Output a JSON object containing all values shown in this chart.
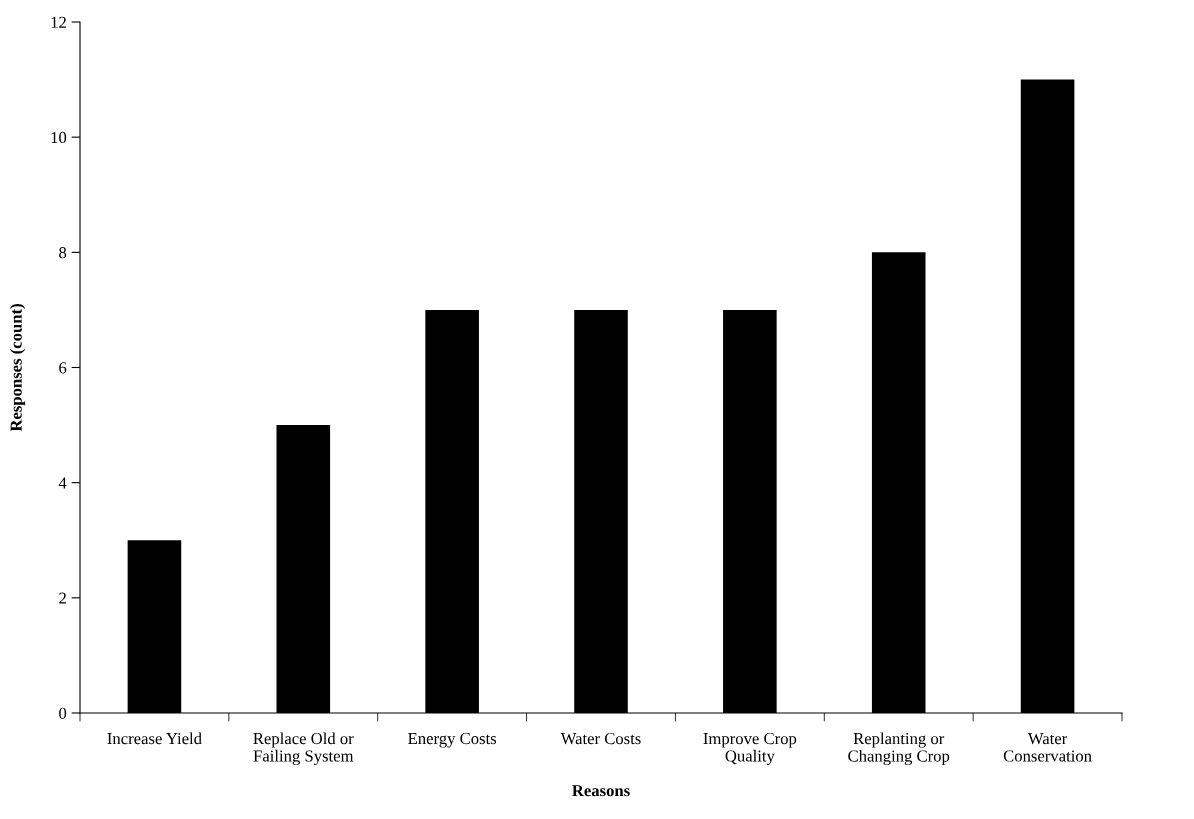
{
  "chart_data": {
    "type": "bar",
    "xlabel": "Reasons",
    "ylabel": "Responses (count)",
    "categories": [
      "Increase Yield",
      "Replace Old or\nFailing System",
      "Energy Costs",
      "Water Costs",
      "Improve Crop\nQuality",
      "Replanting or\nChanging Crop",
      "Water\nConservation"
    ],
    "values": [
      3,
      5,
      7,
      7,
      7,
      8,
      11
    ],
    "color": "#000000",
    "ylim": [
      0,
      12
    ],
    "yticks": [
      0,
      2,
      4,
      6,
      8,
      10,
      12
    ],
    "grid": false,
    "legend": false
  }
}
